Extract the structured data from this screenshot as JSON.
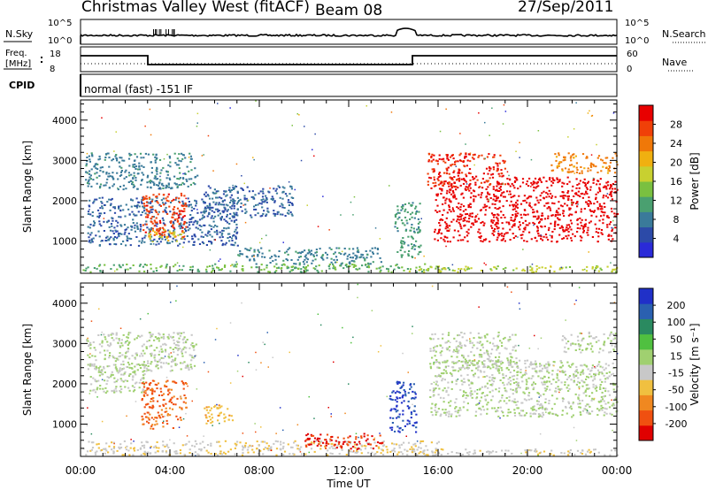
{
  "header": {
    "title": "Christmas Valley West (fitACF)",
    "beam": "Beam 08",
    "date": "27/Sep/2011"
  },
  "top_panels": {
    "nsky_label": "N.Sky",
    "nsky_ticks": [
      "10^5",
      "10^0"
    ],
    "nsearch_label": "N.Search",
    "freq_label": [
      "Freq.",
      "[MHz]"
    ],
    "freq_ticks": [
      "18",
      "8"
    ],
    "nave_label": "Nave",
    "nave_ticks": [
      "60",
      "0"
    ],
    "cpid_label": "CPID",
    "cpid_text": "normal (fast) -151 IF"
  },
  "chart_data": [
    {
      "type": "heatmap",
      "name": "power",
      "ylabel": "Slant Range [km]",
      "xlabel": "",
      "ylim": [
        200,
        4500
      ],
      "yticks": [
        1000,
        2000,
        3000,
        4000
      ],
      "xlim_hours": [
        0,
        24
      ],
      "xticks": [
        "00:00",
        "04:00",
        "08:00",
        "12:00",
        "16:00",
        "20:00",
        "00:00"
      ],
      "colorbar": {
        "label": "Power [dB]",
        "ticks": [
          "28",
          "24",
          "20",
          "16",
          "12",
          "8",
          "4"
        ],
        "range": [
          0,
          30
        ],
        "colors": [
          "#2a2ad8",
          "#2c4aa8",
          "#3a7a9a",
          "#4aa070",
          "#7ac040",
          "#c8d030",
          "#f0b010",
          "#f07808",
          "#f04008",
          "#e80000"
        ]
      },
      "regions": [
        {
          "t": [
            0.2,
            5.2
          ],
          "r": [
            2300,
            3200
          ],
          "level": 8
        },
        {
          "t": [
            0.3,
            7.0
          ],
          "r": [
            900,
            2100
          ],
          "level": 6
        },
        {
          "t": [
            2.7,
            4.7
          ],
          "r": [
            1100,
            2200
          ],
          "level": 26
        },
        {
          "t": [
            3.0,
            4.6
          ],
          "r": [
            1000,
            1300
          ],
          "level": 18
        },
        {
          "t": [
            5.5,
            9.5
          ],
          "r": [
            1600,
            2400
          ],
          "level": 6
        },
        {
          "t": [
            0.0,
            16.5
          ],
          "r": [
            250,
            450
          ],
          "level": 12
        },
        {
          "t": [
            7.0,
            13.5
          ],
          "r": [
            450,
            850
          ],
          "level": 8
        },
        {
          "t": [
            14.0,
            15.2
          ],
          "r": [
            600,
            2000
          ],
          "level": 10
        },
        {
          "t": [
            15.8,
            24.0
          ],
          "r": [
            1000,
            2600
          ],
          "level": 29
        },
        {
          "t": [
            15.5,
            19.0
          ],
          "r": [
            2300,
            3200
          ],
          "level": 27
        },
        {
          "t": [
            21.0,
            24.0
          ],
          "r": [
            2700,
            3200
          ],
          "level": 22
        },
        {
          "t": [
            14.5,
            24.0
          ],
          "r": [
            250,
            400
          ],
          "level": 16
        }
      ]
    },
    {
      "type": "heatmap",
      "name": "velocity",
      "ylabel": "Slant Range [km]",
      "xlabel": "Time UT",
      "ylim": [
        200,
        4500
      ],
      "yticks": [
        1000,
        2000,
        3000,
        4000
      ],
      "xlim_hours": [
        0,
        24
      ],
      "xticks": [
        "00:00",
        "04:00",
        "08:00",
        "12:00",
        "16:00",
        "20:00",
        "00:00"
      ],
      "colorbar": {
        "label": "Velocity [m s⁻¹]",
        "ticks": [
          "200",
          "100",
          "50",
          "15",
          "-15",
          "-50",
          "-100",
          "-200"
        ],
        "range": [
          -250,
          250
        ],
        "colors": [
          "#e00000",
          "#f05010",
          "#f08820",
          "#f0c040",
          "#c8c8c8",
          "#a0d070",
          "#50c040",
          "#2a8a60",
          "#2a60b0",
          "#2030c8"
        ]
      },
      "regions": [
        {
          "t": [
            0.2,
            5.2
          ],
          "r": [
            2300,
            3300
          ],
          "level": 0
        },
        {
          "t": [
            0.3,
            3.0
          ],
          "r": [
            1800,
            2500
          ],
          "level": 0
        },
        {
          "t": [
            2.7,
            4.7
          ],
          "r": [
            900,
            2100
          ],
          "level": -160
        },
        {
          "t": [
            5.5,
            6.8
          ],
          "r": [
            1000,
            1500
          ],
          "level": -80
        },
        {
          "t": [
            0.0,
            16.0
          ],
          "r": [
            250,
            600
          ],
          "level": -40
        },
        {
          "t": [
            10.0,
            13.5
          ],
          "r": [
            400,
            800
          ],
          "level": -200
        },
        {
          "t": [
            13.8,
            15.0
          ],
          "r": [
            800,
            2100
          ],
          "level": 200
        },
        {
          "t": [
            15.6,
            24.0
          ],
          "r": [
            1200,
            2600
          ],
          "level": 0
        },
        {
          "t": [
            15.6,
            19.5
          ],
          "r": [
            2400,
            3300
          ],
          "level": 0
        },
        {
          "t": [
            21.5,
            24.0
          ],
          "r": [
            2800,
            3300
          ],
          "level": 0
        },
        {
          "t": [
            14.5,
            24.0
          ],
          "r": [
            250,
            400
          ],
          "level": -30
        }
      ]
    }
  ]
}
